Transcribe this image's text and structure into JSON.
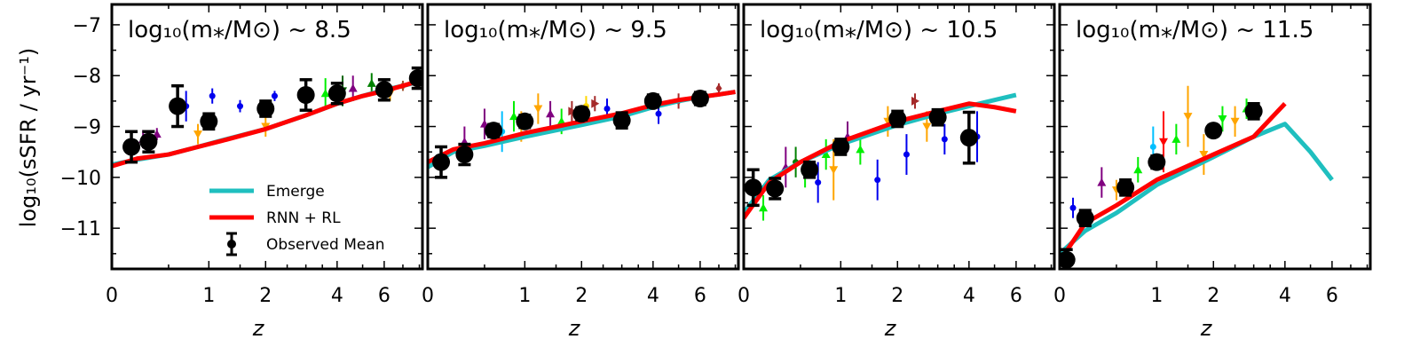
{
  "chart_data": {
    "type": "scatter",
    "ylabel": "log₁₀(sSFR / yr⁻¹)",
    "xlabel": "z",
    "ylim": [
      -11.8,
      -6.6
    ],
    "x_scale": "log(1+z)",
    "x_ticks": [
      0,
      1,
      2,
      4,
      6
    ],
    "y_ticks": [
      -11,
      -10,
      -9,
      -8,
      -7
    ],
    "legend": {
      "placement": "lower-left of first panel",
      "entries": [
        "Emerge",
        "RNN + RL",
        "Observed Mean"
      ]
    },
    "colors": {
      "emerge": "#1fbfbf",
      "rnn": "#ff0000",
      "observed": "#000000"
    },
    "panels": [
      {
        "title_base": "log₁₀(m⁎/M⊙) ~ ",
        "title_value": "8.5",
        "xlim": [
          0,
          8.2
        ],
        "series": [
          {
            "name": "Emerge",
            "x": [
              0,
              0.2,
              0.5,
              0.8,
              1.2,
              2,
              3,
              4,
              5,
              6,
              7,
              8
            ],
            "y": [
              -9.75,
              -9.65,
              -9.55,
              -9.42,
              -9.27,
              -9.05,
              -8.78,
              -8.55,
              -8.4,
              -8.28,
              -8.2,
              -8.12
            ]
          },
          {
            "name": "RNN + RL",
            "x": [
              0,
              0.2,
              0.5,
              0.8,
              1.2,
              2,
              3,
              4,
              5,
              6,
              7,
              8
            ],
            "y": [
              -9.78,
              -9.63,
              -9.55,
              -9.42,
              -9.28,
              -9.05,
              -8.78,
              -8.55,
              -8.4,
              -8.3,
              -8.2,
              -8.1
            ]
          },
          {
            "name": "Observed Mean",
            "x": [
              0.15,
              0.3,
              0.6,
              1.0,
              2.0,
              3.0,
              4.0,
              6.0,
              7.9
            ],
            "y": [
              -9.4,
              -9.3,
              -8.6,
              -8.9,
              -8.65,
              -8.38,
              -8.35,
              -8.28,
              -8.05
            ],
            "yerr": [
              0.3,
              0.2,
              0.4,
              0.15,
              0.15,
              0.3,
              0.2,
              0.2,
              0.2
            ]
          }
        ],
        "scatter": [
          {
            "x": 0.25,
            "y": -9.25,
            "color": "#800080",
            "shape": "tri-up",
            "err": 0.18
          },
          {
            "x": 0.38,
            "y": -9.15,
            "color": "#800080",
            "shape": "tri-up",
            "err": 0.12
          },
          {
            "x": 0.7,
            "y": -8.6,
            "color": "#0000ee",
            "shape": "dot",
            "err": 0.3
          },
          {
            "x": 0.85,
            "y": -9.15,
            "color": "#ffa500",
            "shape": "tri-down",
            "err": 0.2
          },
          {
            "x": 1.05,
            "y": -8.4,
            "color": "#0000ee",
            "shape": "dot",
            "err": 0.15
          },
          {
            "x": 1.5,
            "y": -8.6,
            "color": "#0000ee",
            "shape": "dot",
            "err": 0.12
          },
          {
            "x": 2.2,
            "y": -8.4,
            "color": "#0000ee",
            "shape": "dot",
            "err": 0.1
          },
          {
            "x": 2.0,
            "y": -9.0,
            "color": "#ffa500",
            "shape": "tri-down",
            "err": 0.2
          },
          {
            "x": 3.6,
            "y": -8.35,
            "color": "#00ee00",
            "shape": "tri-up",
            "err": 0.3
          },
          {
            "x": 4.2,
            "y": -8.3,
            "color": "#006400",
            "shape": "tri-down",
            "err": 0.3
          },
          {
            "x": 4.6,
            "y": -8.25,
            "color": "#800080",
            "shape": "tri-up",
            "err": 0.25
          },
          {
            "x": 5.4,
            "y": -8.15,
            "color": "#008000",
            "shape": "tri-up",
            "err": 0.2
          },
          {
            "x": 6.3,
            "y": -8.35,
            "color": "#ffa500",
            "shape": "tri-down",
            "err": 0.15
          },
          {
            "x": 7.0,
            "y": -8.2,
            "color": "#a0522d",
            "shape": "diamond",
            "err": 0.1
          }
        ]
      },
      {
        "title_base": "log₁₀(m⁎/M⊙) ~ ",
        "title_value": "9.5",
        "xlim": [
          0,
          8.2
        ],
        "series": [
          {
            "name": "Emerge",
            "x": [
              0,
              0.2,
              0.5,
              1,
              2,
              3,
              4,
              5,
              6,
              7,
              8
            ],
            "y": [
              -9.8,
              -9.5,
              -9.38,
              -9.2,
              -8.97,
              -8.8,
              -8.62,
              -8.5,
              -8.42,
              -8.37,
              -8.32
            ]
          },
          {
            "name": "RNN + RL",
            "x": [
              0,
              0.2,
              0.5,
              1,
              2,
              3,
              4,
              5,
              6,
              7,
              8
            ],
            "y": [
              -9.7,
              -9.45,
              -9.33,
              -9.13,
              -8.9,
              -8.74,
              -8.58,
              -8.48,
              -8.42,
              -8.37,
              -8.32
            ]
          },
          {
            "name": "Observed Mean",
            "x": [
              0.1,
              0.3,
              0.6,
              1.0,
              2.0,
              3.0,
              4.0,
              6.0
            ],
            "y": [
              -9.7,
              -9.55,
              -9.08,
              -8.9,
              -8.75,
              -8.88,
              -8.5,
              -8.45
            ],
            "yerr": [
              0.3,
              0.2,
              0.12,
              0.12,
              0.12,
              0.15,
              0.12,
              0.12
            ]
          }
        ],
        "scatter": [
          {
            "x": 0.3,
            "y": -9.3,
            "color": "#800080",
            "shape": "tri-up",
            "err": 0.3
          },
          {
            "x": 0.5,
            "y": -8.95,
            "color": "#800080",
            "shape": "tri-up",
            "err": 0.3
          },
          {
            "x": 0.7,
            "y": -9.1,
            "color": "#00bfff",
            "shape": "dot",
            "err": 0.4
          },
          {
            "x": 0.85,
            "y": -8.8,
            "color": "#00ee00",
            "shape": "tri-up",
            "err": 0.3
          },
          {
            "x": 0.95,
            "y": -9.0,
            "color": "#ffa500",
            "shape": "tri-down",
            "err": 0.3
          },
          {
            "x": 1.2,
            "y": -8.65,
            "color": "#ffa500",
            "shape": "tri-down",
            "err": 0.3
          },
          {
            "x": 1.4,
            "y": -8.75,
            "color": "#800080",
            "shape": "tri-up",
            "err": 0.25
          },
          {
            "x": 1.6,
            "y": -8.9,
            "color": "#00ee00",
            "shape": "tri-up",
            "err": 0.25
          },
          {
            "x": 1.8,
            "y": -8.7,
            "color": "#a52a2a",
            "shape": "tri-right",
            "err": 0.2
          },
          {
            "x": 2.1,
            "y": -8.6,
            "color": "#ffd700",
            "shape": "dot",
            "err": 0.2
          },
          {
            "x": 2.3,
            "y": -8.55,
            "color": "#a52a2a",
            "shape": "tri-right",
            "err": 0.15
          },
          {
            "x": 2.6,
            "y": -8.65,
            "color": "#0000ee",
            "shape": "dot",
            "err": 0.2
          },
          {
            "x": 4.2,
            "y": -8.75,
            "color": "#0000ee",
            "shape": "dot",
            "err": 0.2
          },
          {
            "x": 5.0,
            "y": -8.5,
            "color": "#a52a2a",
            "shape": "diamond",
            "err": 0.15
          },
          {
            "x": 7.0,
            "y": -8.25,
            "color": "#a52a2a",
            "shape": "diamond",
            "err": 0.1
          }
        ]
      },
      {
        "title_base": "log₁₀(m⁎/M⊙) ~ ",
        "title_value": "10.5",
        "xlim": [
          0,
          8.2
        ],
        "series": [
          {
            "name": "Emerge",
            "x": [
              0,
              0.2,
              0.5,
              1,
              2,
              3,
              4,
              5,
              6
            ],
            "y": [
              -10.7,
              -10.05,
              -9.7,
              -9.35,
              -8.97,
              -8.75,
              -8.6,
              -8.48,
              -8.38
            ]
          },
          {
            "name": "RNN + RL",
            "x": [
              0,
              0.2,
              0.5,
              1,
              2,
              3,
              4,
              5,
              6
            ],
            "y": [
              -10.8,
              -10.1,
              -9.7,
              -9.3,
              -8.9,
              -8.7,
              -8.55,
              -8.62,
              -8.7
            ]
          },
          {
            "name": "Observed Mean",
            "x": [
              0.07,
              0.25,
              0.6,
              1.0,
              2.0,
              3.0,
              4.0
            ],
            "y": [
              -10.2,
              -10.22,
              -9.85,
              -9.4,
              -8.85,
              -8.82,
              -9.22
            ],
            "yerr": [
              0.35,
              0.2,
              0.15,
              0.15,
              0.15,
              0.15,
              0.5
            ]
          }
        ],
        "scatter": [
          {
            "x": 0.15,
            "y": -10.6,
            "color": "#00ee00",
            "shape": "tri-up",
            "err": 0.25
          },
          {
            "x": 0.35,
            "y": -9.8,
            "color": "#800080",
            "shape": "tri-up",
            "err": 0.4
          },
          {
            "x": 0.45,
            "y": -9.7,
            "color": "#008000",
            "shape": "dot",
            "err": 0.3
          },
          {
            "x": 0.55,
            "y": -9.95,
            "color": "#00ee00",
            "shape": "tri-down",
            "err": 0.25
          },
          {
            "x": 0.7,
            "y": -10.1,
            "color": "#0000ee",
            "shape": "dot",
            "err": 0.4
          },
          {
            "x": 0.8,
            "y": -9.55,
            "color": "#00ee00",
            "shape": "tri-up",
            "err": 0.3
          },
          {
            "x": 0.9,
            "y": -9.85,
            "color": "#ffa500",
            "shape": "tri-down",
            "err": 0.6
          },
          {
            "x": 1.1,
            "y": -9.2,
            "color": "#800080",
            "shape": "tri-up",
            "err": 0.3
          },
          {
            "x": 1.3,
            "y": -9.45,
            "color": "#00ee00",
            "shape": "tri-up",
            "err": 0.3
          },
          {
            "x": 1.6,
            "y": -10.05,
            "color": "#0000ee",
            "shape": "dot",
            "err": 0.4
          },
          {
            "x": 1.8,
            "y": -8.9,
            "color": "#ffa500",
            "shape": "tri-down",
            "err": 0.3
          },
          {
            "x": 2.2,
            "y": -9.55,
            "color": "#0000ee",
            "shape": "dot",
            "err": 0.4
          },
          {
            "x": 2.4,
            "y": -8.5,
            "color": "#a52a2a",
            "shape": "tri-right",
            "err": 0.15
          },
          {
            "x": 2.7,
            "y": -9.0,
            "color": "#ffa500",
            "shape": "tri-down",
            "err": 0.3
          },
          {
            "x": 3.2,
            "y": -9.25,
            "color": "#0000ee",
            "shape": "dot",
            "err": 0.3
          },
          {
            "x": 4.3,
            "y": -9.2,
            "color": "#0000ee",
            "shape": "dot",
            "err": 0.5
          }
        ]
      },
      {
        "title_base": "log₁₀(m⁎/M⊙) ~ ",
        "title_value": "11.5",
        "xlim": [
          0,
          8.2
        ],
        "series": [
          {
            "name": "Emerge",
            "x": [
              0,
              0.2,
              0.5,
              1,
              2,
              3,
              4,
              5,
              6
            ],
            "y": [
              -11.5,
              -11.05,
              -10.7,
              -10.15,
              -9.6,
              -9.2,
              -8.95,
              -9.5,
              -10.05
            ]
          },
          {
            "name": "RNN + RL",
            "x": [
              0,
              0.2,
              0.5,
              1,
              2,
              3,
              4
            ],
            "y": [
              -11.65,
              -10.9,
              -10.55,
              -10.05,
              -9.55,
              -9.2,
              -8.55
            ]
          },
          {
            "name": "Observed Mean",
            "x": [
              0.05,
              0.2,
              0.6,
              1.0,
              2.0,
              3.0
            ],
            "y": [
              -11.62,
              -10.8,
              -10.2,
              -9.7,
              -9.08,
              -8.7
            ],
            "yerr": [
              0.2,
              0.15,
              0.15,
              0.12,
              0.1,
              0.15
            ]
          }
        ],
        "scatter": [
          {
            "x": 0.1,
            "y": -10.6,
            "color": "#0000ee",
            "shape": "dot",
            "err": 0.2
          },
          {
            "x": 0.35,
            "y": -10.1,
            "color": "#800080",
            "shape": "tri-up",
            "err": 0.3
          },
          {
            "x": 0.5,
            "y": -10.25,
            "color": "#ffa500",
            "shape": "tri-down",
            "err": 0.2
          },
          {
            "x": 0.75,
            "y": -9.85,
            "color": "#00ee00",
            "shape": "tri-up",
            "err": 0.25
          },
          {
            "x": 0.95,
            "y": -9.4,
            "color": "#00bfff",
            "shape": "dot",
            "err": 0.4
          },
          {
            "x": 1.1,
            "y": -9.3,
            "color": "#ff0000",
            "shape": "tri-down",
            "err": 0.6
          },
          {
            "x": 1.3,
            "y": -9.25,
            "color": "#00ee00",
            "shape": "tri-up",
            "err": 0.3
          },
          {
            "x": 1.5,
            "y": -8.8,
            "color": "#ffa500",
            "shape": "tri-down",
            "err": 0.6
          },
          {
            "x": 1.8,
            "y": -9.55,
            "color": "#ffa500",
            "shape": "tri-down",
            "err": 0.4
          },
          {
            "x": 2.2,
            "y": -8.85,
            "color": "#00ee00",
            "shape": "tri-down",
            "err": 0.25
          },
          {
            "x": 2.5,
            "y": -8.9,
            "color": "#ffa500",
            "shape": "tri-down",
            "err": 0.3
          },
          {
            "x": 2.8,
            "y": -8.65,
            "color": "#00ee00",
            "shape": "tri-up",
            "err": 0.2
          }
        ]
      }
    ]
  }
}
